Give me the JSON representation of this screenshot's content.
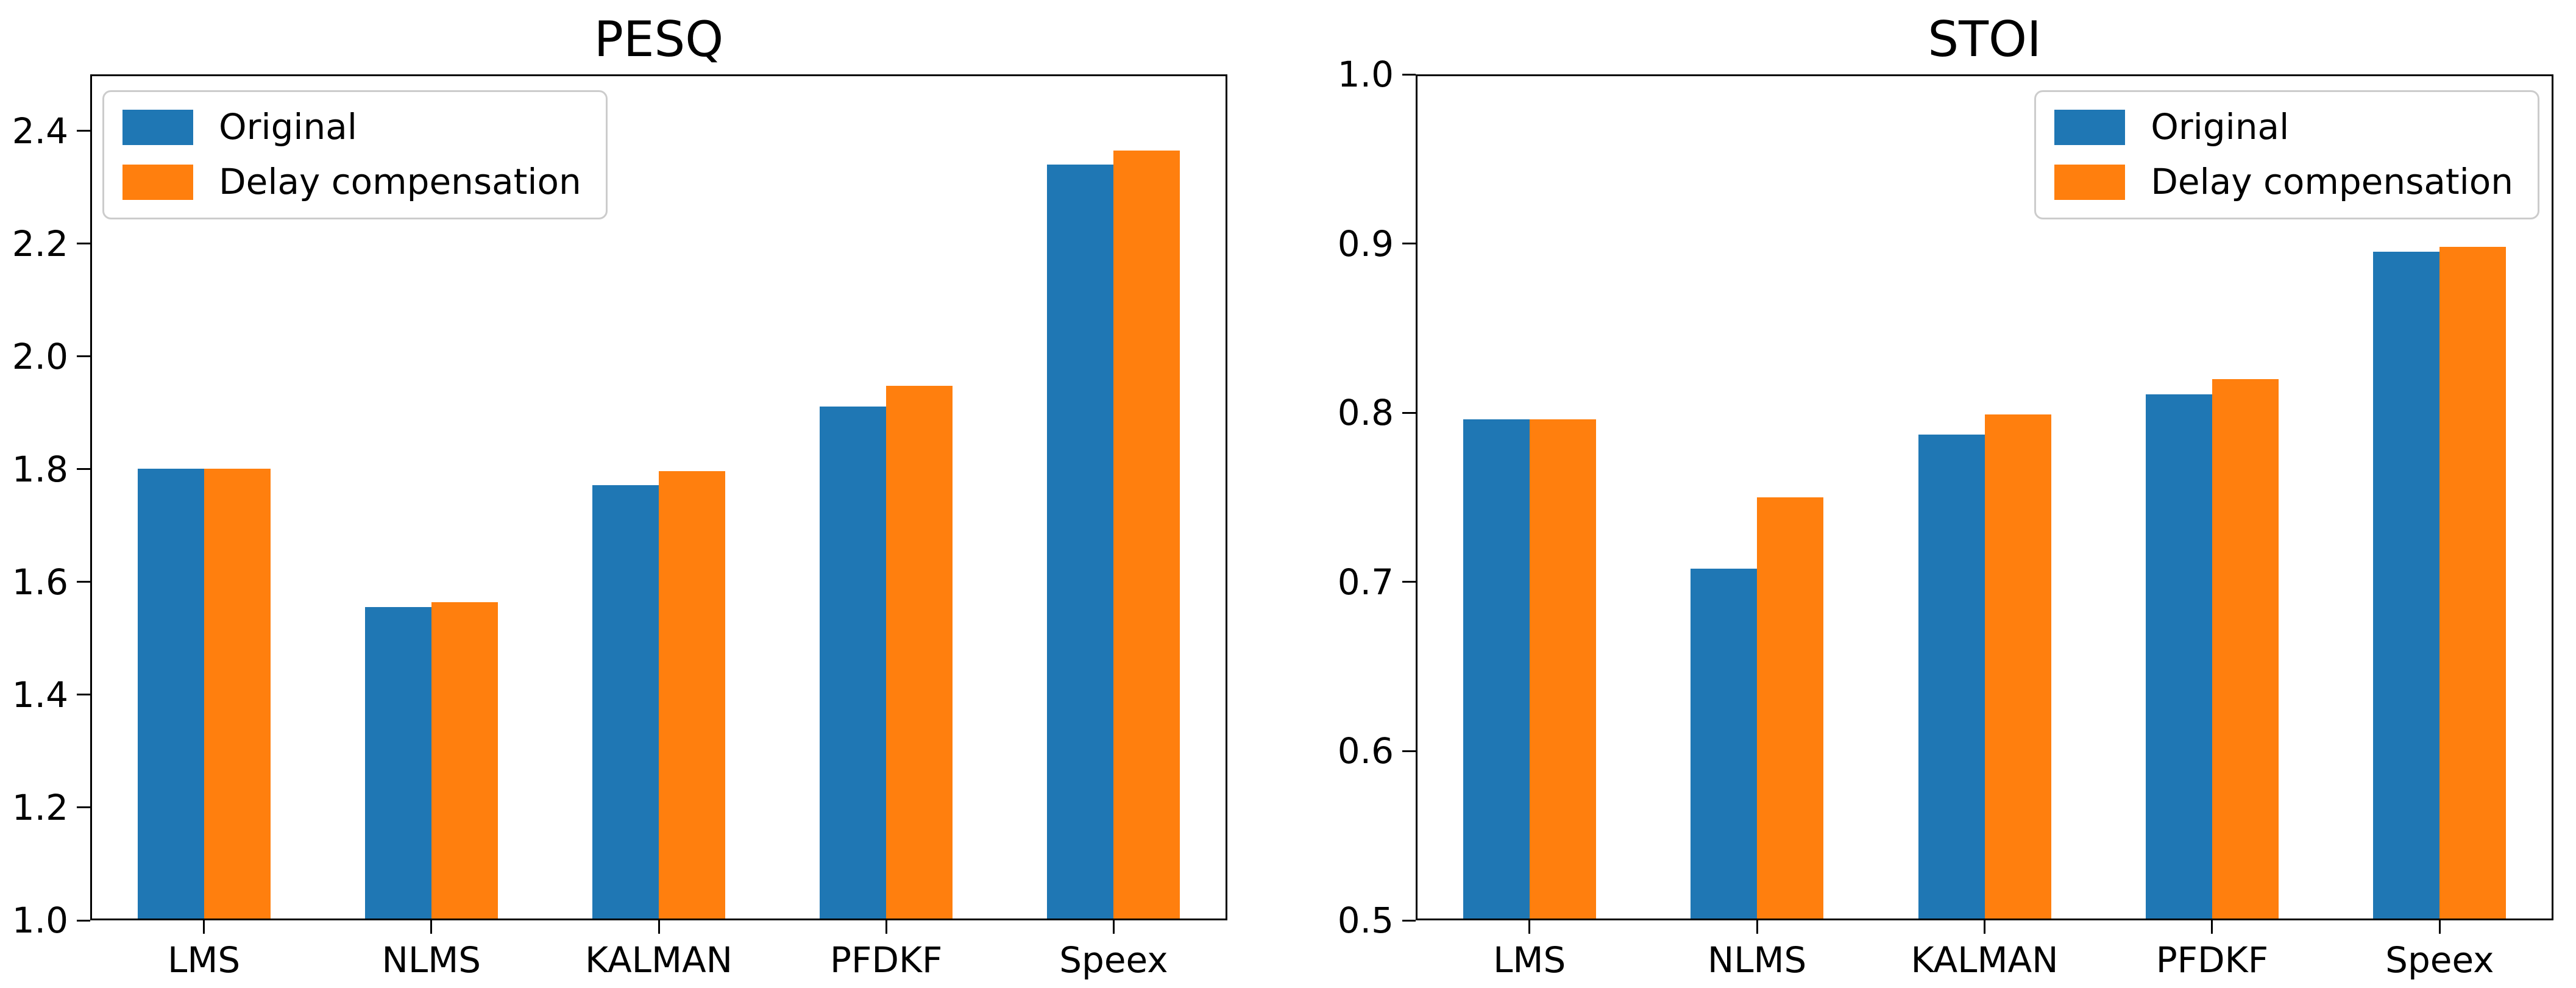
{
  "figure_background": "#ffffff",
  "colors": {
    "original": "#1f77b4",
    "delay_compensation": "#ff7f0e",
    "spine": "#000000",
    "text": "#000000",
    "legend_border": "#cccccc"
  },
  "chart_data": [
    {
      "type": "bar",
      "title": "PESQ",
      "categories": [
        "LMS",
        "NLMS",
        "KALMAN",
        "PFDKF",
        "Speex"
      ],
      "series": [
        {
          "name": "Original",
          "color": "#1f77b4",
          "values": [
            1.801,
            1.556,
            1.772,
            1.911,
            2.34
          ]
        },
        {
          "name": "Delay compensation",
          "color": "#ff7f0e",
          "values": [
            1.801,
            1.564,
            1.796,
            1.948,
            2.365
          ]
        }
      ],
      "xlabel": "",
      "ylabel": "",
      "ylim": [
        1.0,
        2.5
      ],
      "yticks": [
        1.0,
        1.2,
        1.4,
        1.6,
        1.8,
        2.0,
        2.2,
        2.4
      ],
      "ytick_labels": [
        "1.0",
        "1.2",
        "1.4",
        "1.6",
        "1.8",
        "2.0",
        "2.2",
        "2.4"
      ],
      "grid": false,
      "legend_position": "upper-left"
    },
    {
      "type": "bar",
      "title": "STOI",
      "categories": [
        "LMS",
        "NLMS",
        "KALMAN",
        "PFDKF",
        "Speex"
      ],
      "series": [
        {
          "name": "Original",
          "color": "#1f77b4",
          "values": [
            0.796,
            0.708,
            0.787,
            0.811,
            0.895
          ]
        },
        {
          "name": "Delay compensation",
          "color": "#ff7f0e",
          "values": [
            0.796,
            0.75,
            0.799,
            0.82,
            0.898
          ]
        }
      ],
      "xlabel": "",
      "ylabel": "",
      "ylim": [
        0.5,
        1.0
      ],
      "yticks": [
        0.5,
        0.6,
        0.7,
        0.8,
        0.9,
        1.0
      ],
      "ytick_labels": [
        "0.5",
        "0.6",
        "0.7",
        "0.8",
        "0.9",
        "1.0"
      ],
      "grid": false,
      "legend_position": "upper-right"
    }
  ]
}
